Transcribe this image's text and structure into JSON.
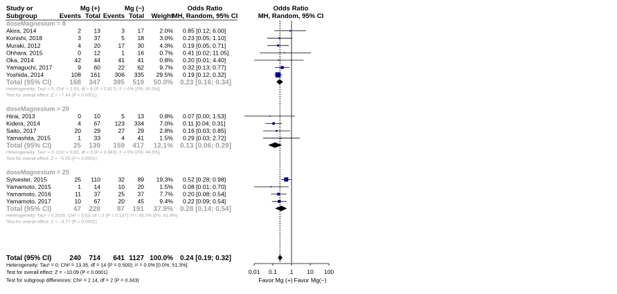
{
  "chart_data": {
    "type": "forest",
    "header": {
      "study": "Study or",
      "subgroup": "Subgroup",
      "group1": "Mg (+)",
      "group2": "Mg (−)",
      "events": "Events",
      "total": "Total",
      "weight": "Weight",
      "or_title": "Odds Ratio",
      "or_sub": "MH, Random, 95% CI",
      "plot_title": "Odds Ratio",
      "plot_sub": "MH, Random, 95% CI"
    },
    "subgroups": [
      {
        "name": "doseMagnesium = 8",
        "studies": [
          {
            "study": "Akira, 2014",
            "e1": "2",
            "n1": "13",
            "e2": "3",
            "n2": "17",
            "weight": "2.0%",
            "ci": "0.85 [0.12;  6.00]",
            "or": 0.85,
            "lo": 0.12,
            "hi": 6.0,
            "w": 2.0
          },
          {
            "study": "Konishi, 2018",
            "e1": "3",
            "n1": "37",
            "e2": "5",
            "n2": "18",
            "weight": "3.0%",
            "ci": "0.23 [0.05;  1.10]",
            "or": 0.23,
            "lo": 0.05,
            "hi": 1.1,
            "w": 3.0
          },
          {
            "study": "Muraki, 2012",
            "e1": "4",
            "n1": "20",
            "e2": "17",
            "n2": "30",
            "weight": "4.3%",
            "ci": "0.19 [0.05;  0.71]",
            "or": 0.19,
            "lo": 0.05,
            "hi": 0.71,
            "w": 4.3
          },
          {
            "study": "Ohhara, 2015",
            "e1": "0",
            "n1": "12",
            "e2": "1",
            "n2": "16",
            "weight": "0.7%",
            "ci": "0.41 [0.02; 11.05]",
            "or": 0.41,
            "lo": 0.02,
            "hi": 11.05,
            "w": 0.7
          },
          {
            "study": "Oka, 2014",
            "e1": "42",
            "n1": "44",
            "e2": "41",
            "n2": "41",
            "weight": "0.8%",
            "ci": "0.20 [0.01;  4.40]",
            "or": 0.2,
            "lo": 0.01,
            "hi": 4.4,
            "w": 0.8
          },
          {
            "study": "Yamaguchi, 2017",
            "e1": "9",
            "n1": "60",
            "e2": "22",
            "n2": "62",
            "weight": "9.7%",
            "ci": "0.32 [0.13;  0.77]",
            "or": 0.32,
            "lo": 0.13,
            "hi": 0.77,
            "w": 9.7
          },
          {
            "study": "Yoshida, 2014",
            "e1": "108",
            "n1": "161",
            "e2": "306",
            "n2": "335",
            "weight": "29.5%",
            "ci": "0.19 [0.12;  0.32]",
            "or": 0.19,
            "lo": 0.12,
            "hi": 0.32,
            "w": 29.5
          }
        ],
        "total": {
          "label": "Total (95% CI)",
          "n1": "168",
          "t1": "347",
          "n2": "395",
          "t2": "519",
          "weight": "50.0%",
          "ci": "0.23 [0.16;  0.34]",
          "or": 0.23,
          "lo": 0.16,
          "hi": 0.34
        },
        "heterogeneity": "Heterogeneity: Tau² = 0; Chi² = 2.93, df = 6 (P = 0.817); I² = 0% [0%; 40.3%]",
        "overall_effect": "Test for overall effect: Z = −7.44 (P < 0.0001)"
      },
      {
        "name": "doseMagnesium = 20",
        "studies": [
          {
            "study": "Hirai, 2013",
            "e1": "0",
            "n1": "10",
            "e2": "5",
            "n2": "13",
            "weight": "0.8%",
            "ci": "0.07 [0.00;  1.53]",
            "or": 0.07,
            "lo": 0.003,
            "hi": 1.53,
            "w": 0.8
          },
          {
            "study": "Kidera, 2014",
            "e1": "4",
            "n1": "67",
            "e2": "123",
            "n2": "334",
            "weight": "7.0%",
            "ci": "0.11 [0.04;  0.31]",
            "or": 0.11,
            "lo": 0.04,
            "hi": 0.31,
            "w": 7.0
          },
          {
            "study": "Saito, 2017",
            "e1": "20",
            "n1": "29",
            "e2": "27",
            "n2": "29",
            "weight": "2.8%",
            "ci": "0.16 [0.03;  0.85]",
            "or": 0.16,
            "lo": 0.03,
            "hi": 0.85,
            "w": 2.8
          },
          {
            "study": "Yamashita, 2015",
            "e1": "1",
            "n1": "33",
            "e2": "4",
            "n2": "41",
            "weight": "1.5%",
            "ci": "0.29 [0.03;  2.72]",
            "or": 0.29,
            "lo": 0.03,
            "hi": 2.72,
            "w": 1.5
          }
        ],
        "total": {
          "label": "Total (95% CI)",
          "n1": "25",
          "t1": "139",
          "n2": "159",
          "t2": "417",
          "weight": "12.1%",
          "ci": "0.13 [0.06;  0.29]",
          "or": 0.13,
          "lo": 0.06,
          "hi": 0.29
        },
        "heterogeneity": "Heterogeneity: Tau² = 0; Chi² = 0.83, df = 3 (P = 0.843); I² = 0% [0%; 44.5%]",
        "overall_effect": "Test for overall effect: Z = −5.05 (P < 0.0001)"
      },
      {
        "name": "doseMagnesium = 25",
        "studies": [
          {
            "study": "Sylvester, 2015",
            "e1": "25",
            "n1": "110",
            "e2": "32",
            "n2": "89",
            "weight": "19.3%",
            "ci": "0.52 [0.28;  0.98]",
            "or": 0.52,
            "lo": 0.28,
            "hi": 0.98,
            "w": 19.3
          },
          {
            "study": "Yamamoto, 2015",
            "e1": "1",
            "n1": "14",
            "e2": "10",
            "n2": "20",
            "weight": "1.5%",
            "ci": "0.08 [0.01;  0.70]",
            "or": 0.08,
            "lo": 0.01,
            "hi": 0.7,
            "w": 1.5
          },
          {
            "study": "Yamamoto, 2016",
            "e1": "11",
            "n1": "37",
            "e2": "25",
            "n2": "37",
            "weight": "7.7%",
            "ci": "0.20 [0.08;  0.54]",
            "or": 0.2,
            "lo": 0.08,
            "hi": 0.54,
            "w": 7.7
          },
          {
            "study": "Yamamoto, 2017",
            "e1": "10",
            "n1": "67",
            "e2": "20",
            "n2": "45",
            "weight": "9.4%",
            "ci": "0.22 [0.09;  0.54]",
            "or": 0.22,
            "lo": 0.09,
            "hi": 0.54,
            "w": 9.4
          }
        ],
        "total": {
          "label": "Total (95% CI)",
          "n1": "47",
          "t1": "228",
          "n2": "87",
          "t2": "191",
          "weight": "37.9%",
          "ci": "0.28 [0.14;  0.54]",
          "or": 0.28,
          "lo": 0.14,
          "hi": 0.54
        },
        "heterogeneity": "Heterogeneity: Tau² = 0.2035; Chi² = 5.53, df = 3 (P = 0.137); I² = 45.7% [0%; 81.9%]",
        "overall_effect": "Test for overall effect: Z = −3.77 (P = 0.0002)"
      }
    ],
    "overall": {
      "label": "Total (95% CI)",
      "n1": "240",
      "t1": "714",
      "n2": "641",
      "t2": "1127",
      "weight": "100.0%",
      "ci": "0.24 [0.19;  0.32]",
      "or": 0.24,
      "lo": 0.19,
      "hi": 0.32,
      "heterogeneity": "Heterogeneity: Tau² = 0; Chi² = 13.35, df = 14 (P = 0.500); I² = 0.0% [0.0%; 51.3%]",
      "overall_effect": "Test for overall effect: Z = −10.09 (P < 0.0001)",
      "subgroup_diff": "Test for subgroup differences: Chi² = 2.14, df = 2 (P = 0.343)"
    },
    "x_axis": {
      "scale": "log",
      "ticks": [
        0.01,
        0.1,
        1,
        10,
        100
      ],
      "tick_labels": [
        "0.01",
        "0.1",
        "1",
        "10",
        "100"
      ],
      "range": [
        0.01,
        100
      ],
      "left_label": "Favor Mg (+)",
      "right_label": "Favor Mg(−)"
    },
    "colors": {
      "square": "#00008b",
      "diamond": "#000000",
      "subtotal_text": "#a0a0a0",
      "line": "#000000"
    }
  }
}
